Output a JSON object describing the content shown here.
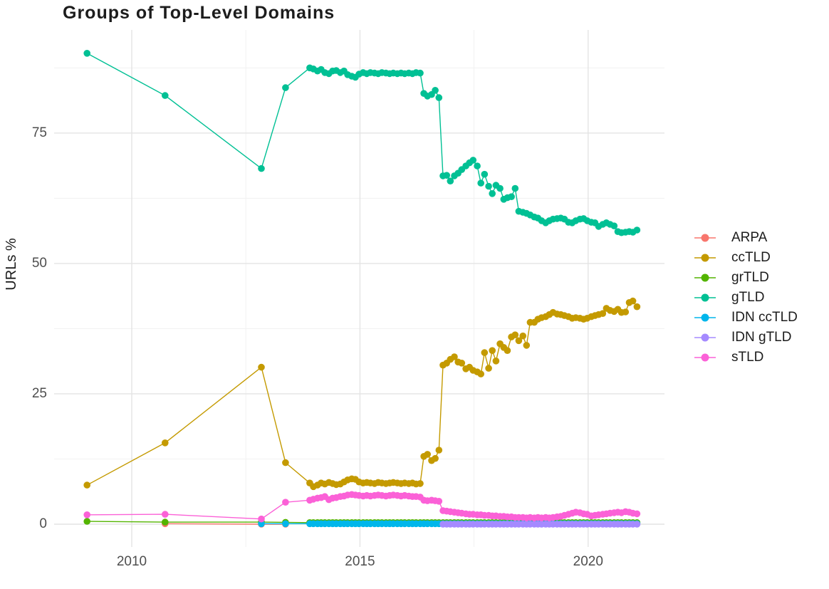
{
  "chart_data": {
    "type": "line",
    "title": "Groups of Top-Level Domains",
    "xlabel": "",
    "ylabel": "URLs %",
    "grid": true,
    "legend_position": "right",
    "colors": {
      "background": "#ffffff",
      "gridline_major": "#e4e4e4",
      "gridline_minor": "#f0f0f0",
      "title_text": "#1c1c1c",
      "tick_text": "#4e4e4e"
    },
    "x_axis": {
      "range": [
        2008.4,
        2021.7
      ],
      "ticks": [
        {
          "value": 2010,
          "label": "2010"
        },
        {
          "value": 2015,
          "label": "2015"
        },
        {
          "value": 2020,
          "label": "2020"
        }
      ],
      "minor_ticks": [
        2012.5,
        2017.5
      ]
    },
    "y_axis": {
      "range": [
        -4.6,
        94.9
      ],
      "ticks": [
        {
          "value": 0,
          "label": "0"
        },
        {
          "value": 25,
          "label": "25"
        },
        {
          "value": 50,
          "label": "50"
        },
        {
          "value": 75,
          "label": "75"
        }
      ],
      "minor_ticks": [
        12.5,
        37.5,
        62.5,
        87.5
      ]
    },
    "x_sparse": [
      2009.02,
      2010.73,
      2012.84,
      2013.37
    ],
    "x_idn_sparse": [
      2012.84,
      2013.37
    ],
    "x_monthly": [
      2013.9,
      2013.98,
      2014.07,
      2014.15,
      2014.23,
      2014.32,
      2014.4,
      2014.48,
      2014.57,
      2014.65,
      2014.73,
      2014.82,
      2014.9,
      2014.98,
      2015.07,
      2015.15,
      2015.23,
      2015.32,
      2015.4,
      2015.48,
      2015.57,
      2015.65,
      2015.73,
      2015.82,
      2015.9,
      2015.98,
      2016.07,
      2016.15,
      2016.23,
      2016.32,
      2016.4,
      2016.48,
      2016.57,
      2016.65,
      2016.73,
      2016.82,
      2016.9,
      2016.98,
      2017.07,
      2017.15,
      2017.23,
      2017.32,
      2017.4,
      2017.48,
      2017.57,
      2017.65,
      2017.73,
      2017.82,
      2017.9,
      2017.98,
      2018.07,
      2018.15,
      2018.23,
      2018.32,
      2018.4,
      2018.48,
      2018.57,
      2018.65,
      2018.73,
      2018.82,
      2018.9,
      2018.98,
      2019.07,
      2019.15,
      2019.23,
      2019.32,
      2019.4,
      2019.48,
      2019.57,
      2019.65,
      2019.73,
      2019.82,
      2019.9,
      2019.98,
      2020.07,
      2020.15,
      2020.23,
      2020.32,
      2020.4,
      2020.48,
      2020.57,
      2020.65,
      2020.73,
      2020.82,
      2020.9,
      2020.98,
      2021.07
    ],
    "series": [
      {
        "name": "ARPA",
        "color": "#F8766D",
        "x": [
          2010.73,
          2012.84,
          2013.37
        ],
        "y": [
          0.1,
          0.0,
          0.0
        ]
      },
      {
        "name": "ccTLD",
        "color": "#C49A00",
        "x_parts": [
          "sparse",
          "monthly"
        ],
        "y": [
          7.5,
          15.6,
          30.1,
          11.8,
          7.9,
          7.2,
          7.5,
          7.9,
          7.7,
          8.0,
          7.8,
          7.6,
          7.7,
          8.1,
          8.5,
          8.7,
          8.6,
          8.1,
          7.9,
          8.0,
          7.9,
          7.8,
          8.0,
          7.9,
          7.8,
          7.9,
          8.0,
          7.9,
          7.8,
          7.9,
          7.8,
          7.9,
          7.7,
          7.8,
          13.0,
          13.4,
          12.2,
          12.6,
          14.2,
          30.5,
          30.9,
          31.6,
          32.1,
          31.1,
          30.9,
          29.8,
          30.1,
          29.5,
          29.2,
          28.8,
          32.9,
          29.9,
          33.3,
          31.3,
          34.6,
          33.9,
          33.3,
          35.9,
          36.3,
          35.2,
          36.1,
          34.3,
          38.7,
          38.7,
          39.3,
          39.6,
          39.8,
          40.2,
          40.6,
          40.3,
          40.2,
          40.0,
          39.8,
          39.5,
          39.6,
          39.5,
          39.3,
          39.5,
          39.8,
          40.0,
          40.2,
          40.4,
          41.4,
          41.0,
          40.8,
          41.2,
          40.6,
          40.7,
          42.5,
          42.8,
          41.7
        ]
      },
      {
        "name": "grTLD",
        "color": "#53B400",
        "x_parts": [
          "sparse",
          "monthly"
        ],
        "y_head": [
          0.55,
          0.4,
          0.4,
          0.35
        ],
        "y_const": 0.3
      },
      {
        "name": "gTLD",
        "color": "#00C094",
        "x_parts": [
          "sparse",
          "monthly"
        ],
        "y": [
          90.3,
          82.2,
          68.2,
          83.7,
          87.5,
          87.3,
          86.9,
          87.2,
          86.6,
          86.4,
          86.9,
          87.0,
          86.6,
          86.9,
          86.2,
          85.9,
          85.7,
          86.3,
          86.6,
          86.4,
          86.6,
          86.5,
          86.4,
          86.6,
          86.5,
          86.4,
          86.5,
          86.4,
          86.5,
          86.4,
          86.5,
          86.4,
          86.6,
          86.5,
          82.6,
          82.1,
          82.4,
          83.2,
          81.8,
          66.8,
          66.9,
          65.8,
          66.8,
          67.3,
          68.0,
          68.7,
          69.3,
          69.8,
          68.7,
          65.4,
          67.1,
          64.8,
          63.4,
          65.0,
          64.4,
          62.3,
          62.6,
          62.8,
          64.4,
          60.0,
          59.8,
          59.6,
          59.3,
          58.9,
          58.7,
          58.2,
          57.8,
          58.2,
          58.5,
          58.6,
          58.7,
          58.5,
          57.9,
          57.8,
          58.2,
          58.5,
          58.6,
          58.2,
          57.9,
          57.8,
          57.1,
          57.5,
          57.8,
          57.5,
          57.2,
          56.1,
          55.9,
          56.0,
          56.1,
          56.0,
          56.4
        ]
      },
      {
        "name": "IDN ccTLD",
        "color": "#00B6EB",
        "x_parts": [
          "idn_sparse",
          "monthly"
        ],
        "y_const": 0.1
      },
      {
        "name": "IDN gTLD",
        "color": "#A58AFF",
        "x_parts": [
          "monthly_tail"
        ],
        "y_const": 0.0
      },
      {
        "name": "sTLD",
        "color": "#FB61D7",
        "x_parts": [
          "sparse",
          "monthly"
        ],
        "y": [
          1.8,
          1.9,
          1.0,
          4.2,
          4.6,
          4.8,
          5.0,
          5.1,
          5.3,
          4.7,
          5.0,
          5.1,
          5.3,
          5.4,
          5.6,
          5.7,
          5.6,
          5.5,
          5.4,
          5.5,
          5.4,
          5.5,
          5.6,
          5.5,
          5.4,
          5.5,
          5.6,
          5.5,
          5.4,
          5.5,
          5.4,
          5.3,
          5.3,
          5.2,
          4.6,
          4.5,
          4.6,
          4.5,
          4.4,
          2.6,
          2.5,
          2.4,
          2.3,
          2.2,
          2.1,
          2.0,
          1.9,
          1.9,
          1.8,
          1.8,
          1.7,
          1.7,
          1.6,
          1.6,
          1.5,
          1.5,
          1.4,
          1.4,
          1.3,
          1.3,
          1.3,
          1.2,
          1.3,
          1.2,
          1.3,
          1.2,
          1.3,
          1.2,
          1.3,
          1.4,
          1.5,
          1.7,
          1.9,
          2.1,
          2.3,
          2.2,
          2.0,
          1.9,
          1.6,
          1.7,
          1.8,
          1.9,
          2.0,
          2.1,
          2.2,
          2.3,
          2.2,
          2.4,
          2.3,
          2.1,
          2.0
        ]
      }
    ]
  }
}
